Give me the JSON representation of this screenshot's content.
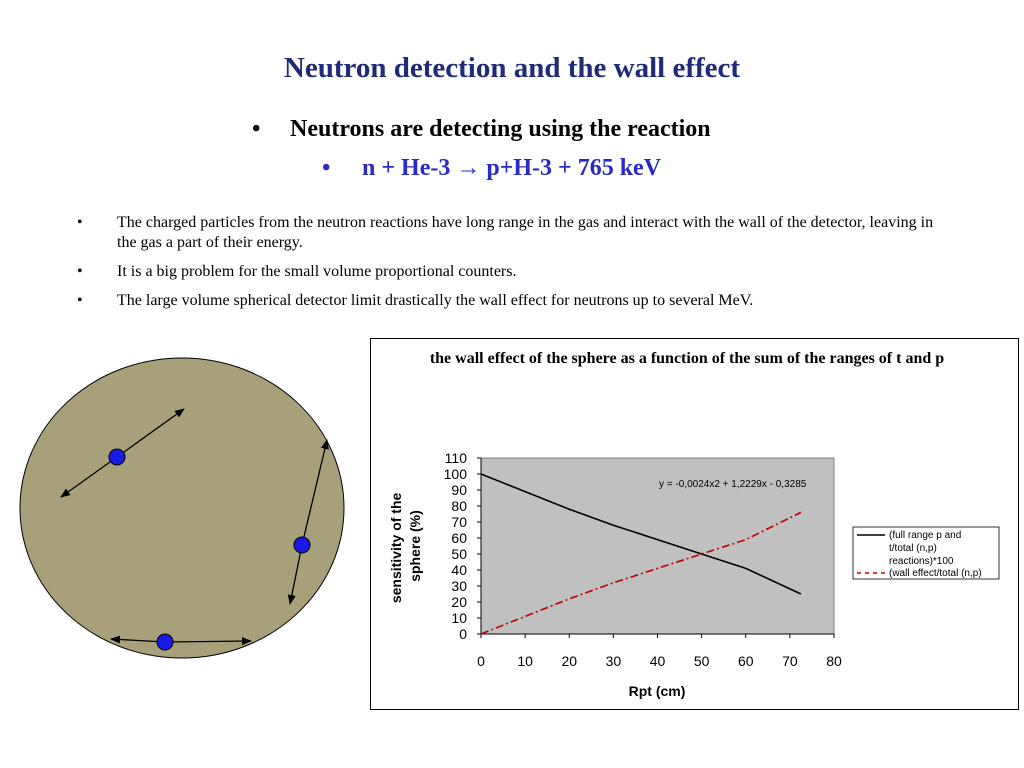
{
  "slide": {
    "title": "Neutron detection and the wall effect",
    "sub_bullets": [
      {
        "marker": "•",
        "text": "Neutrons are detecting using the reaction"
      },
      {
        "marker": "•",
        "text": "n + He-3 → p+H-3 + 765 keV"
      }
    ],
    "bullets": [
      {
        "marker": "•",
        "text": "The charged particles from the neutron reactions have long range in the gas and interact with the wall of the detector, leaving in the gas a part of their energy."
      },
      {
        "marker": "•",
        "text": "It is a big problem for the small volume proportional counters."
      },
      {
        "marker": "•",
        "text": "The large volume spherical detector limit drastically the wall effect for neutrons up to several MeV."
      }
    ]
  },
  "colors": {
    "title": "#1f2a78",
    "reaction_text": "#2a2ac8",
    "sphere_fill": "#a8a07a",
    "particle_dot": "#1a1ae6",
    "plot_area": "#c0c0c0",
    "series_full_range": "#000000",
    "series_wall_effect": "#c00000"
  },
  "chart_data": {
    "type": "line",
    "title": "the wall effect of the sphere as a function of the sum of the ranges of t and p",
    "xlabel": "Rpt (cm)",
    "ylabel": "sensitivity of the sphere (%)",
    "xlim": [
      0,
      80
    ],
    "ylim": [
      0,
      110
    ],
    "xticks": [
      0,
      10,
      20,
      30,
      40,
      50,
      60,
      70,
      80
    ],
    "yticks": [
      0,
      10,
      20,
      30,
      40,
      50,
      60,
      70,
      80,
      90,
      100,
      110
    ],
    "grid": false,
    "legend_position": "right",
    "annotation": "y = -0,0024x2 + 1,2229x - 0,3285",
    "series": [
      {
        "name": "(full range p and t/total (n,p) reactions)*100",
        "style": "solid",
        "x": [
          0,
          10,
          20,
          30,
          40,
          50,
          60,
          72.5
        ],
        "y": [
          100,
          89,
          78,
          68,
          59,
          50,
          41,
          25
        ]
      },
      {
        "name": "(wall effect/total (n,p)",
        "style": "dash-dot",
        "x": [
          0,
          10,
          20,
          30,
          40,
          50,
          60,
          72.5
        ],
        "y": [
          0,
          11,
          22,
          32,
          41,
          50,
          59,
          76
        ]
      }
    ]
  }
}
